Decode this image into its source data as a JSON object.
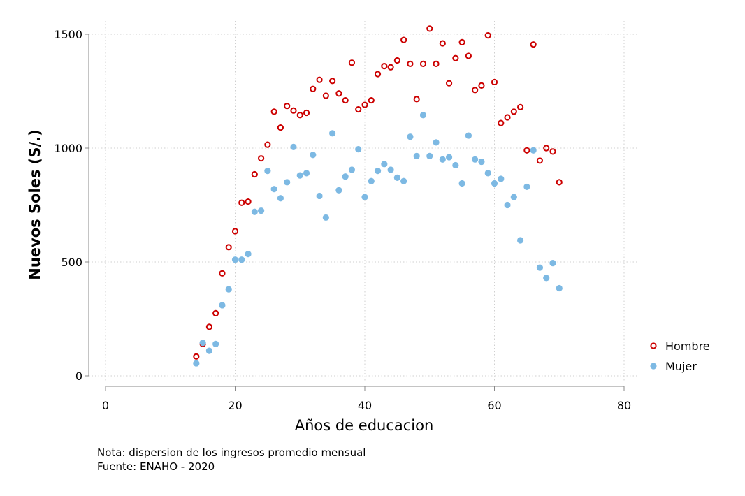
{
  "chart_data": {
    "type": "scatter",
    "xlabel": "Años de educacion",
    "ylabel": "Nuevos Soles (S/.)",
    "xlim": [
      0,
      80
    ],
    "ylim": [
      0,
      1500
    ],
    "xticks": [
      "0",
      "20",
      "40",
      "60",
      "80"
    ],
    "yticks": [
      "0",
      "500",
      "1000",
      "1500"
    ],
    "grid": true,
    "legend_position": "right",
    "series": [
      {
        "name": "Hombre",
        "marker": "hollow-circle",
        "color": "#cc0000",
        "points": [
          [
            14,
            85
          ],
          [
            15,
            140
          ],
          [
            16,
            215
          ],
          [
            17,
            275
          ],
          [
            18,
            450
          ],
          [
            19,
            565
          ],
          [
            20,
            635
          ],
          [
            21,
            760
          ],
          [
            22,
            765
          ],
          [
            23,
            885
          ],
          [
            24,
            955
          ],
          [
            25,
            1015
          ],
          [
            26,
            1160
          ],
          [
            27,
            1090
          ],
          [
            28,
            1185
          ],
          [
            29,
            1165
          ],
          [
            30,
            1145
          ],
          [
            31,
            1155
          ],
          [
            32,
            1260
          ],
          [
            33,
            1300
          ],
          [
            34,
            1230
          ],
          [
            35,
            1295
          ],
          [
            36,
            1240
          ],
          [
            37,
            1210
          ],
          [
            38,
            1375
          ],
          [
            39,
            1170
          ],
          [
            40,
            1190
          ],
          [
            41,
            1210
          ],
          [
            42,
            1325
          ],
          [
            43,
            1360
          ],
          [
            44,
            1355
          ],
          [
            45,
            1385
          ],
          [
            46,
            1475
          ],
          [
            47,
            1370
          ],
          [
            48,
            1215
          ],
          [
            49,
            1370
          ],
          [
            50,
            1525
          ],
          [
            51,
            1370
          ],
          [
            52,
            1460
          ],
          [
            53,
            1285
          ],
          [
            54,
            1395
          ],
          [
            55,
            1465
          ],
          [
            56,
            1405
          ],
          [
            57,
            1255
          ],
          [
            58,
            1275
          ],
          [
            59,
            1495
          ],
          [
            60,
            1290
          ],
          [
            61,
            1110
          ],
          [
            62,
            1135
          ],
          [
            63,
            1160
          ],
          [
            64,
            1180
          ],
          [
            65,
            990
          ],
          [
            66,
            1455
          ],
          [
            67,
            945
          ],
          [
            68,
            1000
          ],
          [
            69,
            985
          ],
          [
            70,
            850
          ]
        ]
      },
      {
        "name": "Mujer",
        "marker": "filled-circle",
        "color": "#7db9e3",
        "points": [
          [
            14,
            55
          ],
          [
            15,
            145
          ],
          [
            16,
            110
          ],
          [
            17,
            140
          ],
          [
            18,
            310
          ],
          [
            19,
            380
          ],
          [
            20,
            510
          ],
          [
            21,
            510
          ],
          [
            22,
            535
          ],
          [
            23,
            720
          ],
          [
            24,
            725
          ],
          [
            25,
            900
          ],
          [
            26,
            820
          ],
          [
            27,
            780
          ],
          [
            28,
            850
          ],
          [
            29,
            1005
          ],
          [
            30,
            880
          ],
          [
            31,
            890
          ],
          [
            32,
            970
          ],
          [
            33,
            790
          ],
          [
            34,
            695
          ],
          [
            35,
            1065
          ],
          [
            36,
            815
          ],
          [
            37,
            875
          ],
          [
            38,
            905
          ],
          [
            39,
            995
          ],
          [
            40,
            785
          ],
          [
            41,
            855
          ],
          [
            42,
            900
          ],
          [
            43,
            930
          ],
          [
            44,
            905
          ],
          [
            45,
            870
          ],
          [
            46,
            855
          ],
          [
            47,
            1050
          ],
          [
            48,
            965
          ],
          [
            49,
            1145
          ],
          [
            50,
            965
          ],
          [
            51,
            1025
          ],
          [
            52,
            950
          ],
          [
            53,
            960
          ],
          [
            54,
            925
          ],
          [
            55,
            845
          ],
          [
            56,
            1055
          ],
          [
            57,
            950
          ],
          [
            58,
            940
          ],
          [
            59,
            890
          ],
          [
            60,
            845
          ],
          [
            61,
            865
          ],
          [
            62,
            750
          ],
          [
            63,
            785
          ],
          [
            64,
            595
          ],
          [
            65,
            830
          ],
          [
            66,
            990
          ],
          [
            67,
            475
          ],
          [
            68,
            430
          ],
          [
            69,
            495
          ],
          [
            70,
            385
          ]
        ]
      }
    ]
  },
  "notes": {
    "line1": "Nota: dispersion de los ingresos promedio mensual",
    "line2": "Fuente: ENAHO - 2020"
  }
}
